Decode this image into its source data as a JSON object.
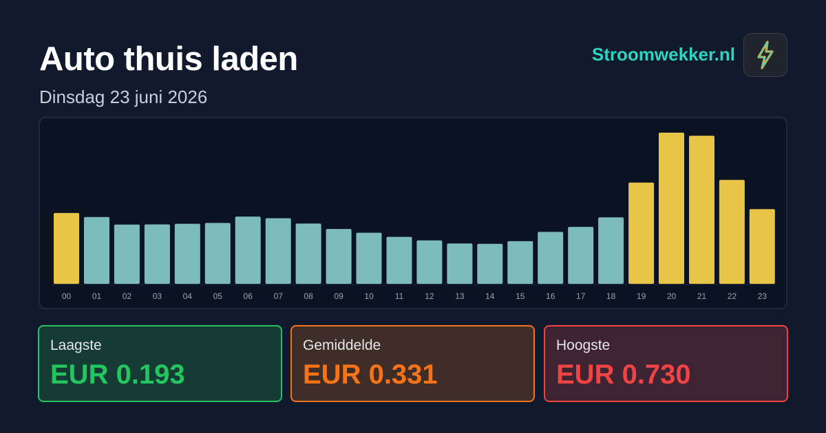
{
  "header": {
    "title": "Auto thuis laden",
    "subtitle": "Dinsdag 23 juni 2026",
    "brand": "Stroomwekker.nl",
    "logo_icon": "lightning-bolt-icon"
  },
  "colors": {
    "background": "#111a2c",
    "bar_normal": "#7ebcbc",
    "bar_high": "#e8c547",
    "brand": "#2dd4bf",
    "low": "#22c55e",
    "avg": "#f97316",
    "high": "#ef4444"
  },
  "chart_data": {
    "type": "bar",
    "categories": [
      "00",
      "01",
      "02",
      "03",
      "04",
      "05",
      "06",
      "07",
      "08",
      "09",
      "10",
      "11",
      "12",
      "13",
      "14",
      "15",
      "16",
      "17",
      "18",
      "19",
      "20",
      "21",
      "22",
      "23"
    ],
    "values": [
      0.342,
      0.323,
      0.286,
      0.287,
      0.29,
      0.294,
      0.325,
      0.317,
      0.291,
      0.265,
      0.247,
      0.227,
      0.21,
      0.195,
      0.193,
      0.206,
      0.251,
      0.275,
      0.321,
      0.489,
      0.73,
      0.715,
      0.502,
      0.361
    ],
    "highlighted": [
      true,
      false,
      false,
      false,
      false,
      false,
      false,
      false,
      false,
      false,
      false,
      false,
      false,
      false,
      false,
      false,
      false,
      false,
      false,
      true,
      true,
      true,
      true,
      true
    ],
    "title": "",
    "xlabel": "",
    "ylabel": "",
    "ylim": [
      0,
      0.73
    ],
    "grid": false
  },
  "stats": {
    "low": {
      "label": "Laagste",
      "value": "EUR 0.193"
    },
    "avg": {
      "label": "Gemiddelde",
      "value": "EUR 0.331"
    },
    "high": {
      "label": "Hoogste",
      "value": "EUR 0.730"
    }
  }
}
